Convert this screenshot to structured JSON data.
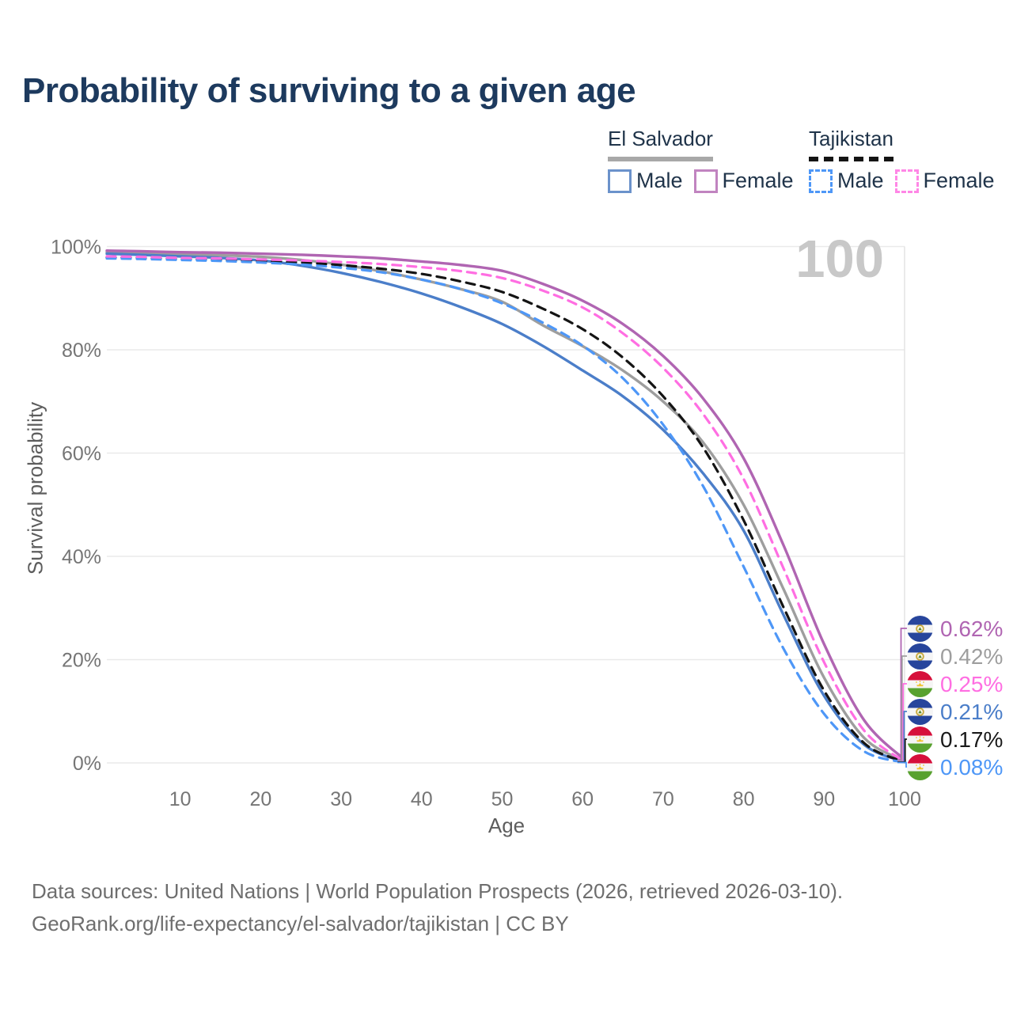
{
  "title": "Probability of surviving to a given age",
  "watermark": "100",
  "legend": {
    "groups": [
      {
        "country": "El Salvador",
        "line_style": "solid",
        "underline_color": "#a8a8a8",
        "items": [
          {
            "label": "Male",
            "color": "#6b92cb"
          },
          {
            "label": "Female",
            "color": "#c184c0"
          }
        ]
      },
      {
        "country": "Tajikistan",
        "line_style": "dashed",
        "underline_color": "#141414",
        "items": [
          {
            "label": "Male",
            "color": "#4e97f7"
          },
          {
            "label": "Female",
            "color": "#ff87e6"
          }
        ]
      }
    ]
  },
  "chart_data": {
    "type": "line",
    "xlabel": "Age",
    "ylabel": "Survival probability",
    "xlim": [
      0,
      100
    ],
    "ylim": [
      0,
      100
    ],
    "x_ticks": [
      10,
      20,
      30,
      40,
      50,
      60,
      70,
      80,
      90,
      100
    ],
    "y_ticks": [
      {
        "value": 0,
        "label": "0%"
      },
      {
        "value": 20,
        "label": "20%"
      },
      {
        "value": 40,
        "label": "40%"
      },
      {
        "value": 60,
        "label": "60%"
      },
      {
        "value": 80,
        "label": "80%"
      },
      {
        "value": 100,
        "label": "100%"
      }
    ],
    "grid": "horizontal",
    "legend_position": "top-right",
    "x": [
      0,
      5,
      10,
      15,
      20,
      25,
      30,
      35,
      40,
      45,
      50,
      55,
      60,
      65,
      70,
      75,
      80,
      85,
      90,
      95,
      100
    ],
    "series": [
      {
        "name": "El Salvador Female",
        "country": "El Salvador",
        "sex": "Female",
        "color": "#b065b2",
        "dashed": false,
        "end_label": "0.62%",
        "values": [
          99.2,
          99.1,
          98.9,
          98.8,
          98.6,
          98.4,
          98.1,
          97.7,
          97.1,
          96.4,
          95.3,
          92.8,
          89.5,
          85.0,
          78.8,
          70.5,
          59.0,
          42.0,
          23.0,
          8.2,
          0.62
        ]
      },
      {
        "name": "El Salvador Both sexes",
        "country": "El Salvador",
        "sex": "Both",
        "color": "#9e9e9e",
        "dashed": false,
        "end_label": "0.42%",
        "values": [
          98.9,
          98.7,
          98.5,
          98.3,
          98.0,
          97.4,
          96.5,
          95.2,
          93.6,
          91.7,
          89.3,
          84.8,
          80.7,
          76.0,
          70.0,
          62.0,
          50.0,
          33.5,
          16.5,
          4.8,
          0.42
        ]
      },
      {
        "name": "Tajikistan Female",
        "country": "Tajikistan",
        "sex": "Female",
        "color": "#ff6ee2",
        "dashed": true,
        "end_label": "0.25%",
        "values": [
          98.1,
          98.0,
          97.8,
          97.7,
          97.5,
          97.3,
          97.0,
          96.6,
          96.0,
          95.2,
          93.9,
          91.5,
          88.2,
          83.2,
          76.5,
          67.5,
          55.0,
          37.5,
          19.5,
          6.2,
          0.25
        ]
      },
      {
        "name": "El Salvador Male",
        "country": "El Salvador",
        "sex": "Male",
        "color": "#4b7ec9",
        "dashed": false,
        "end_label": "0.21%",
        "values": [
          98.6,
          98.4,
          98.1,
          97.8,
          97.3,
          96.3,
          94.9,
          93.1,
          90.9,
          88.2,
          85.0,
          80.8,
          76.0,
          71.0,
          64.5,
          56.0,
          45.0,
          28.5,
          13.0,
          3.5,
          0.21
        ]
      },
      {
        "name": "Tajikistan Both sexes",
        "country": "Tajikistan",
        "sex": "Both",
        "color": "#141414",
        "dashed": true,
        "end_label": "0.17%",
        "values": [
          97.9,
          97.8,
          97.6,
          97.4,
          97.2,
          96.9,
          96.4,
          95.7,
          94.7,
          93.2,
          91.2,
          88.0,
          84.0,
          78.5,
          71.0,
          61.0,
          47.0,
          30.0,
          14.0,
          3.8,
          0.17
        ]
      },
      {
        "name": "Tajikistan Male",
        "country": "Tajikistan",
        "sex": "Male",
        "color": "#4e97f7",
        "dashed": true,
        "end_label": "0.08%",
        "values": [
          97.7,
          97.6,
          97.4,
          97.2,
          96.9,
          96.5,
          95.9,
          95.0,
          93.6,
          91.7,
          89.0,
          85.3,
          80.8,
          74.5,
          65.5,
          53.5,
          38.0,
          22.0,
          9.5,
          2.2,
          0.08
        ]
      }
    ]
  },
  "end_labels": [
    {
      "value": "0.62%",
      "color": "#b065b2",
      "flag": "el-salvador"
    },
    {
      "value": "0.42%",
      "color": "#9e9e9e",
      "flag": "el-salvador"
    },
    {
      "value": "0.25%",
      "color": "#ff6ee2",
      "flag": "tajikistan"
    },
    {
      "value": "0.21%",
      "color": "#4b7ec9",
      "flag": "el-salvador"
    },
    {
      "value": "0.17%",
      "color": "#1a1a1a",
      "flag": "tajikistan"
    },
    {
      "value": "0.08%",
      "color": "#4e97f7",
      "flag": "tajikistan"
    }
  ],
  "footer": {
    "line1": "Data sources: United Nations | World Population Prospects (2026, retrieved 2026-03-10).",
    "line2": "GeoRank.org/life-expectancy/el-salvador/tajikistan | CC BY"
  }
}
